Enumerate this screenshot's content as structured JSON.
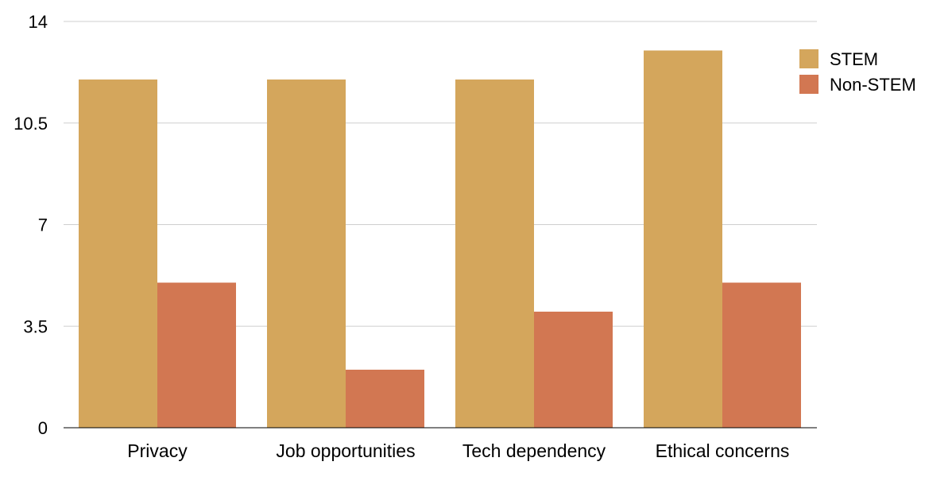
{
  "chart_data": {
    "type": "bar",
    "title": "",
    "xlabel": "",
    "ylabel": "",
    "categories": [
      "Privacy",
      "Job opportunities",
      "Tech dependency",
      "Ethical concerns"
    ],
    "series": [
      {
        "name": "STEM",
        "color": "#D4A65C",
        "values": [
          12,
          12,
          12,
          13
        ]
      },
      {
        "name": "Non-STEM",
        "color": "#D27752",
        "values": [
          5,
          2,
          4,
          5
        ]
      }
    ],
    "ylim": [
      0,
      14
    ],
    "yticks": [
      "0",
      "3.5",
      "7",
      "10.5",
      "14"
    ],
    "grid": true,
    "legend_position": "top-right"
  }
}
